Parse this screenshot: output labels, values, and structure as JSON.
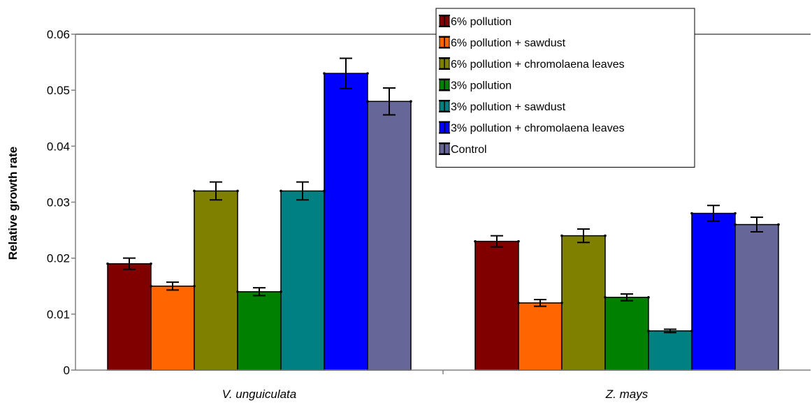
{
  "chart_data": {
    "type": "bar",
    "categories": [
      "V. unguiculata",
      "Z. mays"
    ],
    "ylabel": "Relative growth rate",
    "xlabel": "",
    "ylim": [
      0,
      0.06
    ],
    "yticks": [
      "0",
      "0.01",
      "0.02",
      "0.03",
      "0.04",
      "0.05",
      "0.06"
    ],
    "error_bars": true,
    "legend_position": "top-right",
    "series": [
      {
        "name": "6% pollution",
        "color": "#800000",
        "values": [
          0.019,
          0.023
        ],
        "errors": [
          0.001,
          0.001
        ]
      },
      {
        "name": "6% pollution + sawdust",
        "color": "#ff6600",
        "values": [
          0.015,
          0.012
        ],
        "errors": [
          0.0007,
          0.0006
        ]
      },
      {
        "name": "6% pollution + chromolaena leaves",
        "color": "#808000",
        "values": [
          0.032,
          0.024
        ],
        "errors": [
          0.0016,
          0.0012
        ]
      },
      {
        "name": "3% pollution",
        "color": "#008000",
        "values": [
          0.014,
          0.013
        ],
        "errors": [
          0.0007,
          0.0006
        ]
      },
      {
        "name": "3% pollution + sawdust",
        "color": "#008080",
        "values": [
          0.032,
          0.007
        ],
        "errors": [
          0.0016,
          0.0003
        ]
      },
      {
        "name": "3% pollution + chromolaena leaves",
        "color": "#0000ff",
        "values": [
          0.053,
          0.028
        ],
        "errors": [
          0.0027,
          0.0014
        ]
      },
      {
        "name": "Control",
        "color": "#666699",
        "values": [
          0.048,
          0.026
        ],
        "errors": [
          0.0024,
          0.0013
        ]
      }
    ]
  }
}
